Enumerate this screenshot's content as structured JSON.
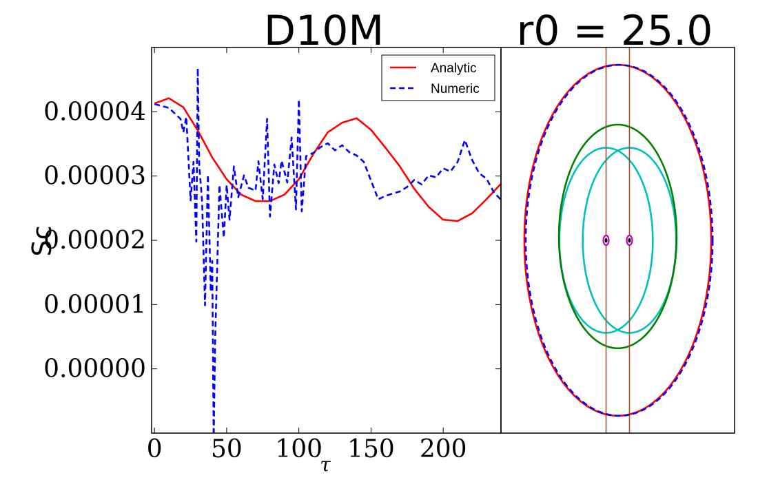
{
  "left_title": "D10M",
  "right_title": "r0 = 25.0",
  "colors": {
    "analytic": "#ff0000",
    "numeric": "#0000ff",
    "outer_ellipse": "#ff0000",
    "middle_ellipse": "#008000",
    "inner_ellipses": "#00bfbf",
    "vertical_lines": "#a0522d",
    "point_ring": "#bf00bf"
  },
  "chart_data": [
    {
      "type": "line",
      "title": "D10M",
      "xlabel": "τ",
      "ylabel": "Sc",
      "xlim": [
        -2,
        240
      ],
      "ylim": [
        -1e-05,
        5e-05
      ],
      "xticks": [
        0,
        50,
        100,
        150,
        200
      ],
      "xtick_labels": [
        "0",
        "50",
        "100",
        "150",
        "200"
      ],
      "yticks": [
        0.0,
        1e-05,
        2e-05,
        3e-05,
        4e-05
      ],
      "ytick_labels": [
        "0.00000",
        "0.00001",
        "0.00002",
        "0.00003",
        "0.00004"
      ],
      "legend": {
        "position": "top-right",
        "entries": [
          "Analytic",
          "Numeric"
        ]
      },
      "series": [
        {
          "name": "Analytic",
          "style": "solid",
          "x": [
            0,
            10,
            20,
            30,
            40,
            50,
            60,
            70,
            80,
            90,
            100,
            110,
            120,
            130,
            140,
            150,
            160,
            170,
            180,
            190,
            200,
            210,
            220,
            230,
            240
          ],
          "y": [
            4.13e-05,
            4.21e-05,
            4.07e-05,
            3.71e-05,
            3.29e-05,
            2.95e-05,
            2.71e-05,
            2.61e-05,
            2.61e-05,
            2.71e-05,
            2.95e-05,
            3.34e-05,
            3.68e-05,
            3.83e-05,
            3.9e-05,
            3.72e-05,
            3.44e-05,
            3.15e-05,
            2.8e-05,
            2.52e-05,
            2.32e-05,
            2.3e-05,
            2.42e-05,
            2.64e-05,
            2.88e-05
          ]
        },
        {
          "name": "Numeric",
          "style": "dashed",
          "x": [
            0,
            10,
            18,
            20,
            22,
            25,
            27,
            29,
            30,
            31,
            33,
            35,
            37,
            39,
            40,
            41,
            42,
            45,
            48,
            50,
            52,
            55,
            58,
            62,
            65,
            70,
            72,
            75,
            78,
            80,
            83,
            86,
            88,
            92,
            95,
            98,
            100,
            102,
            105,
            110,
            115,
            120,
            125,
            130,
            135,
            140,
            145,
            150,
            155,
            160,
            165,
            170,
            175,
            180,
            185,
            190,
            195,
            200,
            205,
            210,
            215,
            220,
            225,
            230,
            235,
            240
          ],
          "y": [
            4.12e-05,
            4.06e-05,
            3.89e-05,
            3.68e-05,
            3.92e-05,
            2.62e-05,
            3.22e-05,
            1.98e-05,
            4.68e-05,
            3.18e-05,
            2.6e-05,
            9.9e-06,
            3.02e-05,
            1.2e-05,
            1.68e-05,
            -1.11e-05,
            4.5e-06,
            2.86e-05,
            2.04e-05,
            2.86e-05,
            2.32e-05,
            3.15e-05,
            2.67e-05,
            3.01e-05,
            2.82e-05,
            2.77e-05,
            3.23e-05,
            2.64e-05,
            3.89e-05,
            2.37e-05,
            3.18e-05,
            2.89e-05,
            3.24e-05,
            2.9e-05,
            3.6e-05,
            2.48e-05,
            4.19e-05,
            2.45e-05,
            3.31e-05,
            3.36e-05,
            3.45e-05,
            3.51e-05,
            3.4e-05,
            3.48e-05,
            3.37e-05,
            3.32e-05,
            3.22e-05,
            2.93e-05,
            2.64e-05,
            2.69e-05,
            2.73e-05,
            2.76e-05,
            2.83e-05,
            2.94e-05,
            2.87e-05,
            3.01e-05,
            2.98e-05,
            3.12e-05,
            3.07e-05,
            3.22e-05,
            3.56e-05,
            3.25e-05,
            3.04e-05,
            2.96e-05,
            2.75e-05,
            2.63e-05
          ]
        }
      ]
    },
    {
      "type": "scatter",
      "title": "r0 = 25.0",
      "xlim": [
        -1.25,
        1.25
      ],
      "ylim": [
        -1.0,
        1.0
      ],
      "grid": false,
      "axes_ticks": false,
      "shapes": [
        {
          "kind": "ellipse",
          "name": "outer_analytic",
          "cx": 0.0,
          "cy": 0.0,
          "rx": 1.0,
          "ry": 0.91,
          "style": "solid",
          "color": "#ff0000"
        },
        {
          "kind": "ellipse",
          "name": "outer_numeric",
          "cx": 0.015,
          "cy": 0.0,
          "rx": 1.0,
          "ry": 0.91,
          "style": "dashed",
          "color": "#0000ff"
        },
        {
          "kind": "ellipse",
          "name": "middle",
          "cx": 0.0,
          "cy": 0.02,
          "rx": 0.63,
          "ry": 0.58,
          "style": "solid",
          "color": "#008000"
        },
        {
          "kind": "ellipse",
          "name": "inner_left",
          "cx": -0.125,
          "cy": 0.0,
          "rx": 0.5,
          "ry": 0.48,
          "style": "solid",
          "color": "#00bfbf"
        },
        {
          "kind": "ellipse",
          "name": "inner_right",
          "cx": 0.125,
          "cy": 0.0,
          "rx": 0.5,
          "ry": 0.48,
          "style": "solid",
          "color": "#00bfbf"
        },
        {
          "kind": "vline",
          "name": "vline_left",
          "x": -0.125,
          "color": "#a0522d"
        },
        {
          "kind": "vline",
          "name": "vline_right",
          "x": 0.125,
          "color": "#a0522d"
        },
        {
          "kind": "point",
          "name": "point_left",
          "x": -0.125,
          "y": 0.0,
          "color": "#bf00bf"
        },
        {
          "kind": "point",
          "name": "point_right",
          "x": 0.125,
          "y": 0.0,
          "color": "#bf00bf"
        }
      ]
    }
  ]
}
